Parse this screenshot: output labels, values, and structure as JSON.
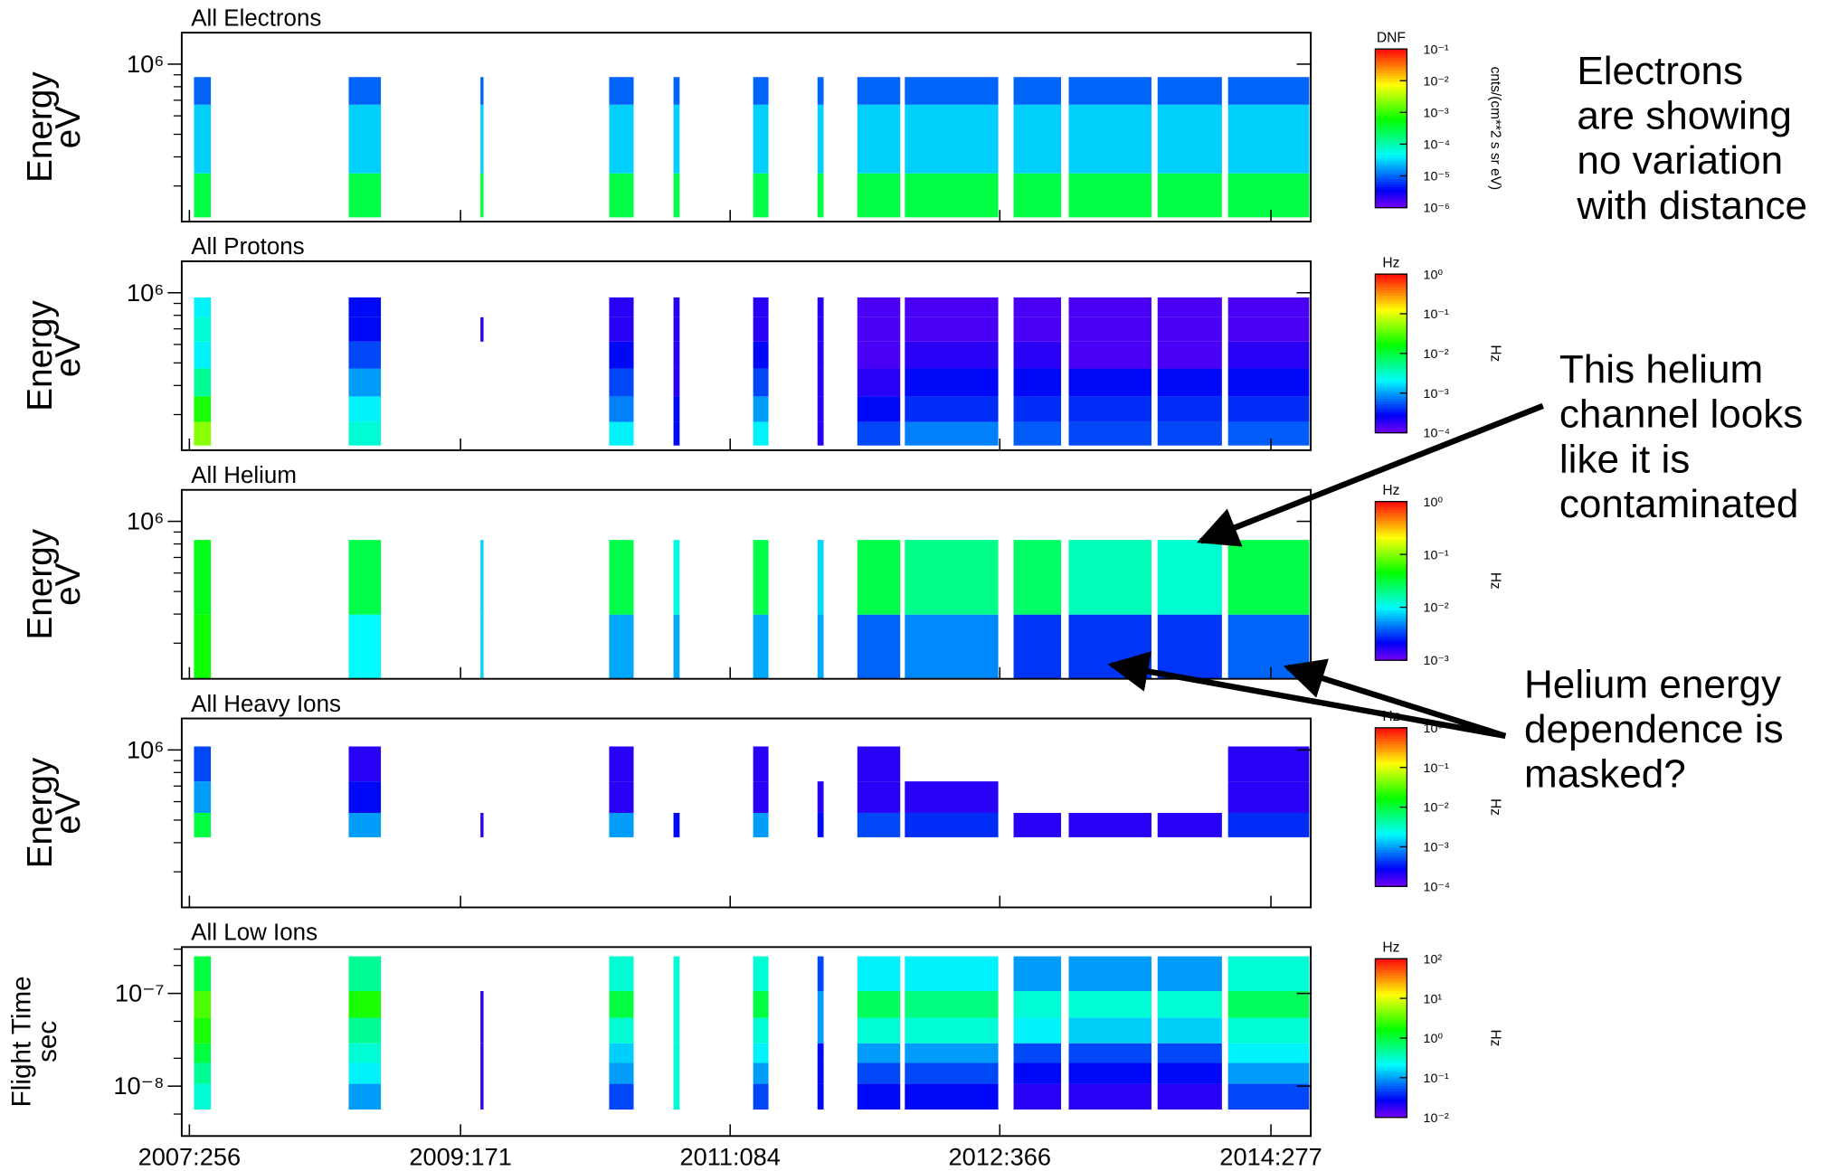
{
  "chart_data": [
    {
      "type": "spectrogram",
      "title": "All Electrons",
      "ylabel": [
        "Energy",
        "eV"
      ],
      "ylog": true,
      "ylim": [
        211000,
        1365000
      ],
      "yticks": [
        {
          "value": 1000000,
          "label": "10⁶"
        }
      ],
      "yminor": [
        900000,
        800000,
        700000,
        600000,
        500000,
        400000,
        300000
      ],
      "xlim": [
        2007.65,
        2015.02
      ],
      "x_start": [
        2007.73,
        2008.74,
        2009.6,
        2010.44,
        2010.86,
        2011.38,
        2011.8,
        2012.06,
        2012.37,
        2013.08,
        2013.44,
        2014.02,
        2014.48
      ],
      "x_end": [
        2007.84,
        2008.95,
        2009.62,
        2010.6,
        2010.9,
        2011.48,
        2011.84,
        2012.34,
        2012.98,
        2013.39,
        2013.98,
        2014.44,
        2015.01
      ],
      "channel_edges": [
        220000,
        340000,
        670000,
        880000
      ],
      "z": [
        [
          0.0003,
          0.0003,
          0.0003,
          0.0003,
          0.0003,
          0.0003,
          0.0003,
          0.0003,
          0.0003,
          0.0003,
          0.0003,
          0.0003,
          0.0003
        ],
        [
          3e-05,
          3e-05,
          3e-05,
          3e-05,
          3e-05,
          3e-05,
          3e-05,
          3e-05,
          3e-05,
          3e-05,
          3e-05,
          3e-05,
          3e-05
        ],
        [
          1e-05,
          1e-05,
          1e-05,
          1e-05,
          1e-05,
          1e-05,
          1e-05,
          1e-05,
          1e-05,
          1e-05,
          1e-05,
          1e-05,
          1e-05
        ]
      ],
      "colormap": "rainbow",
      "clog": true,
      "clim": [
        1e-06,
        0.1
      ],
      "cticks": [
        {
          "value": 1e-06,
          "label": "10⁻⁶"
        },
        {
          "value": 1e-05,
          "label": "10⁻⁵"
        },
        {
          "value": 0.0001,
          "label": "10⁻⁴"
        },
        {
          "value": 0.001,
          "label": "10⁻³"
        },
        {
          "value": 0.01,
          "label": "10⁻²"
        },
        {
          "value": 0.1,
          "label": "10⁻¹"
        }
      ],
      "colorbar_title": "DNF",
      "colorbar_label": "cnts/(cm**2 s sr eV)",
      "annotation": [
        "Electrons",
        "are showing",
        "no variation",
        "with distance"
      ]
    },
    {
      "type": "spectrogram",
      "title": "All Protons",
      "ylabel": [
        "Energy",
        "eV"
      ],
      "ylog": true,
      "ylim": [
        211000,
        1365000
      ],
      "yticks": [
        {
          "value": 1000000,
          "label": "10⁶"
        }
      ],
      "yminor": [
        900000,
        800000,
        700000,
        600000,
        500000,
        400000,
        300000
      ],
      "xlim": [
        2007.65,
        2015.02
      ],
      "x_start": [
        2007.73,
        2008.74,
        2009.6,
        2010.44,
        2010.86,
        2011.38,
        2011.8,
        2012.06,
        2012.37,
        2013.08,
        2013.44,
        2014.02,
        2014.48
      ],
      "x_end": [
        2007.84,
        2008.95,
        2009.62,
        2010.6,
        2010.9,
        2011.48,
        2011.84,
        2012.34,
        2012.98,
        2013.39,
        2013.98,
        2014.44,
        2015.01
      ],
      "channel_edges": [
        221000,
        279000,
        359000,
        473000,
        617000,
        785000,
        955000
      ],
      "z": [
        [
          0.05,
          0.003,
          null,
          0.002,
          0.0003,
          0.002,
          0.0002,
          0.0005,
          0.0008,
          0.0006,
          0.0005,
          0.0005,
          0.0006
        ],
        [
          0.02,
          0.002,
          null,
          0.0008,
          0.0003,
          0.001,
          0.0002,
          0.0003,
          0.0004,
          0.0004,
          0.0004,
          0.0004,
          0.0004
        ],
        [
          0.005,
          0.001,
          null,
          0.0005,
          0.0002,
          0.0005,
          0.0002,
          0.0002,
          0.0003,
          0.0003,
          0.0003,
          0.0003,
          0.0003
        ],
        [
          0.002,
          0.0005,
          null,
          0.0003,
          0.0002,
          0.0003,
          0.0002,
          0.00015,
          0.0002,
          0.0002,
          0.00015,
          0.00015,
          0.0002
        ],
        [
          0.003,
          0.0003,
          0.0002,
          0.0002,
          0.0002,
          0.0002,
          0.0002,
          0.00015,
          0.00015,
          0.00015,
          0.00015,
          0.00015,
          0.00015
        ],
        [
          0.002,
          0.0003,
          null,
          0.0002,
          0.0002,
          0.0002,
          0.0002,
          0.00015,
          0.00015,
          0.00015,
          0.00015,
          0.00015,
          0.00015
        ]
      ],
      "colormap": "rainbow",
      "clog": true,
      "clim": [
        0.0001,
        1
      ],
      "cticks": [
        {
          "value": 0.0001,
          "label": "10⁻⁴"
        },
        {
          "value": 0.001,
          "label": "10⁻³"
        },
        {
          "value": 0.01,
          "label": "10⁻²"
        },
        {
          "value": 0.1,
          "label": "10⁻¹"
        },
        {
          "value": 1,
          "label": "10⁰"
        }
      ],
      "colorbar_title": "Hz",
      "colorbar_label": "Hz"
    },
    {
      "type": "spectrogram",
      "title": "All Helium",
      "ylabel": [
        "Energy",
        "eV"
      ],
      "ylog": true,
      "ylim": [
        211000,
        1365000
      ],
      "yticks": [
        {
          "value": 1000000,
          "label": "10⁶"
        }
      ],
      "yminor": [
        900000,
        800000,
        700000,
        600000,
        500000,
        400000,
        300000
      ],
      "xlim": [
        2007.65,
        2015.02
      ],
      "x_start": [
        2007.73,
        2008.74,
        2009.6,
        2010.44,
        2010.86,
        2011.38,
        2011.8,
        2012.06,
        2012.37,
        2013.08,
        2013.44,
        2014.02,
        2014.48
      ],
      "x_end": [
        2007.84,
        2008.95,
        2009.62,
        2010.6,
        2010.9,
        2011.48,
        2011.84,
        2012.34,
        2012.98,
        2013.39,
        2013.98,
        2014.44,
        2015.01
      ],
      "channel_edges": [
        211000,
        398000,
        832000
      ],
      "z": [
        [
          0.05,
          0.01,
          0.008,
          0.006,
          0.006,
          0.006,
          0.006,
          0.004,
          0.005,
          0.003,
          0.003,
          0.003,
          0.004
        ],
        [
          0.04,
          0.03,
          0.008,
          0.03,
          0.012,
          0.03,
          0.008,
          0.03,
          0.02,
          0.025,
          0.015,
          0.013,
          0.03
        ]
      ],
      "colormap": "rainbow",
      "clog": true,
      "clim": [
        0.001,
        1
      ],
      "cticks": [
        {
          "value": 0.001,
          "label": "10⁻³"
        },
        {
          "value": 0.01,
          "label": "10⁻²"
        },
        {
          "value": 0.1,
          "label": "10⁻¹"
        },
        {
          "value": 1,
          "label": "10⁰"
        }
      ],
      "colorbar_title": "Hz",
      "colorbar_label": "Hz",
      "annotations": [
        [
          "This helium",
          "channel looks",
          "like it is",
          "contaminated"
        ],
        [
          "Helium energy",
          "dependence is",
          "masked?"
        ]
      ]
    },
    {
      "type": "spectrogram",
      "title": "All Heavy Ions",
      "ylabel": [
        "Energy",
        "eV"
      ],
      "ylog": true,
      "ylim": [
        211000,
        1365000
      ],
      "yticks": [
        {
          "value": 1000000,
          "label": "10⁶"
        }
      ],
      "yminor": [
        900000,
        800000,
        700000,
        600000,
        500000,
        400000,
        300000
      ],
      "xlim": [
        2007.65,
        2015.02
      ],
      "x_start": [
        2007.73,
        2008.74,
        2009.6,
        2010.44,
        2010.86,
        2011.38,
        2011.8,
        2012.06,
        2012.37,
        2013.08,
        2013.44,
        2014.02,
        2014.48
      ],
      "x_end": [
        2007.84,
        2008.95,
        2009.62,
        2010.6,
        2010.9,
        2011.48,
        2011.84,
        2012.34,
        2012.98,
        2013.39,
        2013.98,
        2014.44,
        2015.01
      ],
      "channel_edges": [
        422000,
        537000,
        733000,
        1035000
      ],
      "z": [
        [
          0.01,
          0.001,
          0.0002,
          0.001,
          0.0003,
          0.001,
          0.0003,
          0.0005,
          0.0004,
          0.0002,
          0.0002,
          0.0002,
          0.0004
        ],
        [
          0.001,
          0.0003,
          null,
          0.0002,
          null,
          0.0002,
          0.0002,
          0.0002,
          0.0002,
          null,
          null,
          null,
          0.0002
        ],
        [
          0.0005,
          0.0002,
          null,
          0.0002,
          null,
          0.0002,
          null,
          0.0002,
          null,
          null,
          null,
          null,
          0.0002
        ]
      ],
      "colormap": "rainbow",
      "clog": true,
      "clim": [
        0.0001,
        1
      ],
      "cticks": [
        {
          "value": 0.0001,
          "label": "10⁻⁴"
        },
        {
          "value": 0.001,
          "label": "10⁻³"
        },
        {
          "value": 0.01,
          "label": "10⁻²"
        },
        {
          "value": 0.1,
          "label": "10⁻¹"
        },
        {
          "value": 1,
          "label": "10⁰"
        }
      ],
      "colorbar_title": "Hz",
      "colorbar_label": "Hz"
    },
    {
      "type": "spectrogram",
      "title": "All Low Ions",
      "ylabel": [
        "Flight Time",
        "sec"
      ],
      "ylog": true,
      "ylim": [
        2.9e-09,
        3.16e-07
      ],
      "yticks": [
        {
          "value": 1e-07,
          "label": "10⁻⁷"
        },
        {
          "value": 1e-08,
          "label": "10⁻⁸"
        }
      ],
      "yminor": [
        2e-07,
        3e-07,
        5e-08,
        2e-08,
        5e-09
      ],
      "xlim": [
        2007.65,
        2015.02
      ],
      "xticks": [
        {
          "value": 2007.7,
          "label": "2007:256"
        },
        {
          "value": 2009.47,
          "label": "2009:171"
        },
        {
          "value": 2011.23,
          "label": "2011:084"
        },
        {
          "value": 2012.99,
          "label": "2012:366"
        },
        {
          "value": 2014.76,
          "label": "2014:277"
        }
      ],
      "x_start": [
        2007.73,
        2008.74,
        2009.6,
        2010.44,
        2010.86,
        2011.38,
        2011.8,
        2012.06,
        2012.37,
        2013.08,
        2013.44,
        2014.02,
        2014.48
      ],
      "x_end": [
        2007.84,
        2008.95,
        2009.62,
        2010.6,
        2010.9,
        2011.48,
        2011.84,
        2012.34,
        2012.98,
        2013.39,
        2013.98,
        2014.44,
        2015.01
      ],
      "channel_edges": [
        5.6e-09,
        1.06e-08,
        1.78e-08,
        2.9e-08,
        5.46e-08,
        1.06e-07,
        2.51e-07
      ],
      "z": [
        [
          0.3,
          0.1,
          0.02,
          0.05,
          0.3,
          0.05,
          0.03,
          0.03,
          0.03,
          0.02,
          0.02,
          0.02,
          0.05
        ],
        [
          0.5,
          0.2,
          0.02,
          0.1,
          0.3,
          0.1,
          0.03,
          0.05,
          0.05,
          0.03,
          0.03,
          0.03,
          0.1
        ],
        [
          1,
          0.3,
          0.02,
          0.15,
          0.3,
          0.2,
          0.03,
          0.1,
          0.1,
          0.05,
          0.05,
          0.05,
          0.2
        ],
        [
          2,
          0.5,
          0.02,
          0.3,
          0.3,
          0.3,
          0.1,
          0.3,
          0.3,
          0.2,
          0.15,
          0.15,
          0.3
        ],
        [
          3,
          2,
          0.02,
          1,
          0.3,
          1,
          0.1,
          0.8,
          0.6,
          0.3,
          0.3,
          0.3,
          0.8
        ],
        [
          1,
          0.5,
          null,
          0.3,
          0.3,
          0.3,
          0.05,
          0.2,
          0.2,
          0.1,
          0.1,
          0.1,
          0.3
        ]
      ],
      "colormap": "rainbow",
      "clog": true,
      "clim": [
        0.01,
        100
      ],
      "cticks": [
        {
          "value": 0.01,
          "label": "10⁻²"
        },
        {
          "value": 0.1,
          "label": "10⁻¹"
        },
        {
          "value": 1,
          "label": "10⁰"
        },
        {
          "value": 10,
          "label": "10¹"
        },
        {
          "value": 100,
          "label": "10²"
        }
      ],
      "colorbar_title": "Hz",
      "colorbar_label": "Hz"
    }
  ]
}
